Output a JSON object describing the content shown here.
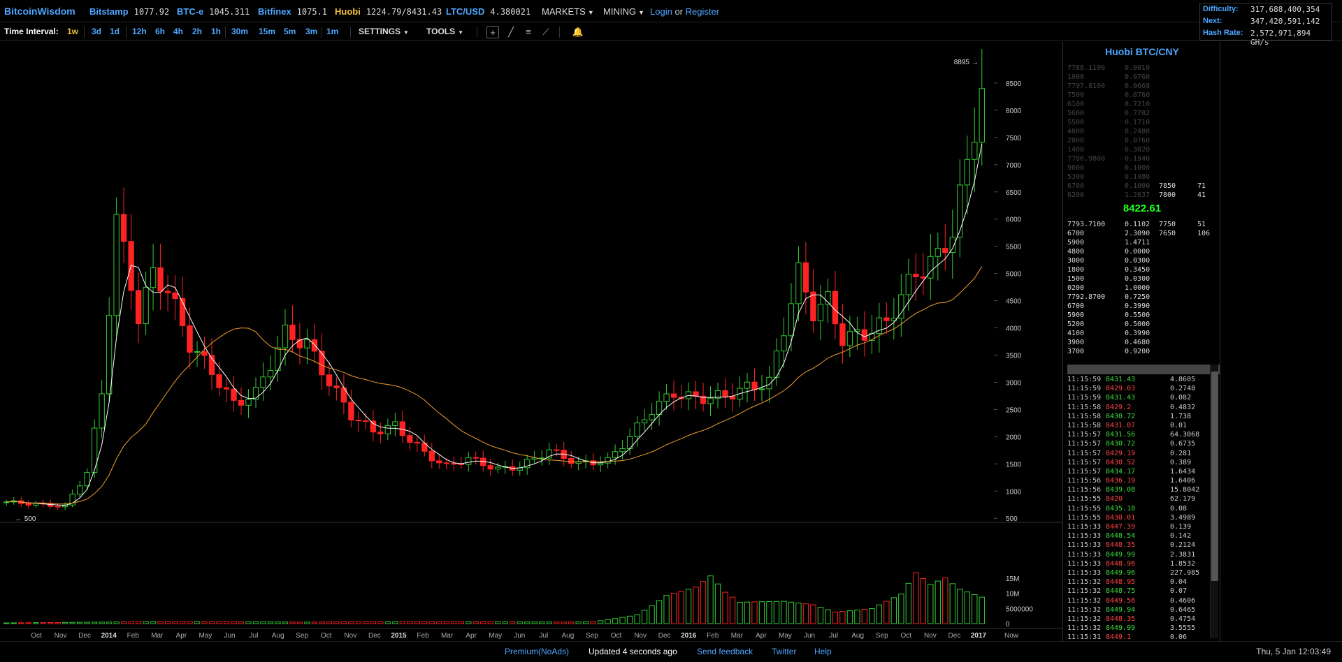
{
  "app": {
    "brand": "BitcoinWisdom"
  },
  "tickers": [
    {
      "name": "Bitstamp",
      "value": "1077.92",
      "style": "blue"
    },
    {
      "name": "BTC-e",
      "value": "1045.311",
      "style": "blue"
    },
    {
      "name": "Bitfinex",
      "value": "1075.1",
      "style": "blue"
    },
    {
      "name": "Huobi",
      "value": "1224.79/8431.43",
      "style": "yellow"
    },
    {
      "name": "LTC/USD",
      "value": "4.380021",
      "style": "blue"
    }
  ],
  "menus": {
    "markets": "MARKETS",
    "mining": "MINING",
    "login": "Login",
    "or": "or",
    "register": "Register"
  },
  "network": {
    "difficulty_label": "Difficulty:",
    "difficulty": "317,688,400,354",
    "next_label": "Next:",
    "next": "347,420,591,142",
    "hashrate_label": "Hash Rate:",
    "hashrate": "2,572,971,894 GH/s"
  },
  "toolbar": {
    "label": "Time Interval:",
    "intervals": [
      "1w",
      "3d",
      "1d",
      "12h",
      "6h",
      "4h",
      "2h",
      "1h",
      "30m",
      "15m",
      "5m",
      "3m",
      "1m"
    ],
    "active": "1w",
    "settings": "SETTINGS",
    "tools": "TOOLS"
  },
  "chart_data": {
    "type": "candlestick",
    "ylim": [
      400,
      9000
    ],
    "price_ticks": [
      500,
      1000,
      1500,
      2000,
      2500,
      3000,
      3500,
      4000,
      4500,
      5000,
      5500,
      6000,
      6500,
      7000,
      7500,
      8000,
      8500
    ],
    "volume_ticks": [
      "0",
      "5000000",
      "10M",
      "15M"
    ],
    "volume_tick_values": [
      0,
      5000000,
      10000000,
      15000000
    ],
    "x_labels": [
      "Oct",
      "Nov",
      "Dec",
      "2014",
      "Feb",
      "Mar",
      "Apr",
      "May",
      "Jun",
      "Jul",
      "Aug",
      "Sep",
      "Oct",
      "Nov",
      "Dec",
      "2015",
      "Feb",
      "Mar",
      "Apr",
      "May",
      "Jun",
      "Jul",
      "Aug",
      "Sep",
      "Oct",
      "Nov",
      "Dec",
      "2016",
      "Feb",
      "Mar",
      "Apr",
      "May",
      "Jun",
      "Jul",
      "Aug",
      "Sep",
      "Oct",
      "Nov",
      "Dec",
      "2017",
      "Now"
    ],
    "bold_labels": [
      "2014",
      "2015",
      "2016",
      "2017"
    ],
    "high_marker": "8895",
    "high_value": 8895,
    "low_marker": "500",
    "low_value": 500,
    "close_anchors": [
      [
        0,
        800
      ],
      [
        8,
        720
      ],
      [
        11,
        1350
      ],
      [
        13,
        2800
      ],
      [
        15,
        6000
      ],
      [
        18,
        4200
      ],
      [
        20,
        5000
      ],
      [
        22,
        4700
      ],
      [
        25,
        3700
      ],
      [
        28,
        3200
      ],
      [
        31,
        2600
      ],
      [
        34,
        2800
      ],
      [
        38,
        3900
      ],
      [
        41,
        3700
      ],
      [
        44,
        3000
      ],
      [
        47,
        2400
      ],
      [
        50,
        2100
      ],
      [
        53,
        2200
      ],
      [
        57,
        1700
      ],
      [
        60,
        1450
      ],
      [
        63,
        1600
      ],
      [
        67,
        1400
      ],
      [
        70,
        1450
      ],
      [
        74,
        1750
      ],
      [
        78,
        1500
      ],
      [
        82,
        1560
      ],
      [
        85,
        2000
      ],
      [
        88,
        2500
      ],
      [
        91,
        2800
      ],
      [
        94,
        2700
      ],
      [
        98,
        2750
      ],
      [
        101,
        2900
      ],
      [
        104,
        3000
      ],
      [
        106,
        4000
      ],
      [
        108,
        5000
      ],
      [
        110,
        4300
      ],
      [
        112,
        4500
      ],
      [
        114,
        3800
      ],
      [
        117,
        3900
      ],
      [
        120,
        4100
      ],
      [
        122,
        4600
      ],
      [
        124,
        5000
      ],
      [
        127,
        5300
      ],
      [
        129,
        5800
      ],
      [
        131,
        7000
      ],
      [
        133,
        8431
      ]
    ],
    "volume_anchors": [
      [
        0,
        0.3
      ],
      [
        20,
        0.6
      ],
      [
        40,
        0.4
      ],
      [
        60,
        0.6
      ],
      [
        80,
        0.7
      ],
      [
        86,
        3
      ],
      [
        90,
        9
      ],
      [
        94,
        11
      ],
      [
        96,
        14
      ],
      [
        98,
        9
      ],
      [
        100,
        6
      ],
      [
        103,
        6
      ],
      [
        106,
        6
      ],
      [
        110,
        5
      ],
      [
        113,
        3
      ],
      [
        118,
        4
      ],
      [
        122,
        8
      ],
      [
        124,
        14
      ],
      [
        126,
        11
      ],
      [
        128,
        13
      ],
      [
        130,
        10
      ],
      [
        133,
        8
      ]
    ],
    "candle_count": 134
  },
  "orderbook": {
    "title": "Huobi BTC/CNY",
    "last_price": "8422.61",
    "asks": [
      [
        "7788.1100",
        "0.0010",
        "",
        ""
      ],
      [
        "1000",
        "0.0760",
        "",
        ""
      ],
      [
        "7797.8100",
        "0.0668",
        "",
        ""
      ],
      [
        "7500",
        "0.0760",
        "",
        ""
      ],
      [
        "6100",
        "0.7210",
        "",
        ""
      ],
      [
        "5600",
        "0.7702",
        "",
        ""
      ],
      [
        "5500",
        "0.1710",
        "",
        ""
      ],
      [
        "4800",
        "0.2480",
        "",
        ""
      ],
      [
        "2800",
        "0.0760",
        "",
        ""
      ],
      [
        "1400",
        "0.3820",
        "",
        ""
      ],
      [
        "7786.9800",
        "0.1940",
        "",
        ""
      ],
      [
        "9600",
        "0.1000",
        "",
        ""
      ],
      [
        "5300",
        "0.1480",
        "",
        ""
      ],
      [
        "6700",
        "0.1000",
        "7850",
        "71"
      ],
      [
        "6200",
        "1.2637",
        "7800",
        "41"
      ]
    ],
    "bids": [
      [
        "7793.7100",
        "0.1102",
        "7750",
        "51"
      ],
      [
        "6700",
        "2.3090",
        "7650",
        "106"
      ],
      [
        "5900",
        "1.4711",
        "",
        ""
      ],
      [
        "4800",
        "0.0000",
        "",
        ""
      ],
      [
        "3000",
        "0.0300",
        "",
        ""
      ],
      [
        "1800",
        "0.3450",
        "",
        ""
      ],
      [
        "1500",
        "0.0300",
        "",
        ""
      ],
      [
        "0200",
        "1.0000",
        "",
        ""
      ],
      [
        "7792.8700",
        "0.7250",
        "",
        ""
      ],
      [
        "6700",
        "0.3990",
        "",
        ""
      ],
      [
        "5900",
        "0.5500",
        "",
        ""
      ],
      [
        "5200",
        "0.5000",
        "",
        ""
      ],
      [
        "4100",
        "0.3990",
        "",
        ""
      ],
      [
        "3900",
        "0.4680",
        "",
        ""
      ],
      [
        "3700",
        "0.9200",
        "",
        ""
      ]
    ]
  },
  "trades": [
    [
      "11:15:59",
      "8431.43",
      "g",
      "4.8605"
    ],
    [
      "11:15:59",
      "8429.03",
      "r",
      "0.2748"
    ],
    [
      "11:15:59",
      "8431.43",
      "g",
      "0.082"
    ],
    [
      "11:15:58",
      "8429.2",
      "r",
      "0.4832"
    ],
    [
      "11:15:58",
      "8430.72",
      "g",
      "1.738"
    ],
    [
      "11:15:58",
      "8431.07",
      "r",
      "0.01"
    ],
    [
      "11:15:57",
      "8431.56",
      "g",
      "64.3068"
    ],
    [
      "11:15:57",
      "8430.72",
      "g",
      "0.6735"
    ],
    [
      "11:15:57",
      "8429.19",
      "r",
      "0.281"
    ],
    [
      "11:15:57",
      "8430.52",
      "r",
      "0.389"
    ],
    [
      "11:15:57",
      "8434.17",
      "g",
      "1.6434"
    ],
    [
      "11:15:56",
      "8436.19",
      "r",
      "1.6406"
    ],
    [
      "11:15:56",
      "8439.08",
      "g",
      "15.8042"
    ],
    [
      "11:15:55",
      "8420",
      "r",
      "62.179"
    ],
    [
      "11:15:55",
      "8435.18",
      "g",
      "0.08"
    ],
    [
      "11:15:55",
      "8430.01",
      "r",
      "3.4989"
    ],
    [
      "11:15:33",
      "8447.39",
      "r",
      "0.139"
    ],
    [
      "11:15:33",
      "8448.54",
      "g",
      "0.142"
    ],
    [
      "11:15:33",
      "8448.35",
      "r",
      "0.2124"
    ],
    [
      "11:15:33",
      "8449.99",
      "g",
      "2.3831"
    ],
    [
      "11:15:33",
      "8448.96",
      "r",
      "1.8532"
    ],
    [
      "11:15:33",
      "8449.96",
      "g",
      "227.985"
    ],
    [
      "11:15:32",
      "8448.95",
      "r",
      "0.04"
    ],
    [
      "11:15:32",
      "8448.75",
      "g",
      "0.07"
    ],
    [
      "11:15:32",
      "8449.56",
      "r",
      "0.4606"
    ],
    [
      "11:15:32",
      "8449.94",
      "g",
      "0.6465"
    ],
    [
      "11:15:32",
      "8448.35",
      "r",
      "0.4754"
    ],
    [
      "11:15:32",
      "8449.99",
      "g",
      "3.5555"
    ],
    [
      "11:15:31",
      "8449.1",
      "r",
      "0.06"
    ]
  ],
  "footer": {
    "premium": "Premium(NoAds)",
    "updated": "Updated 4 seconds ago",
    "feedback": "Send feedback",
    "twitter": "Twitter",
    "help": "Help",
    "timestamp": "Thu, 5 Jan 12:03:49"
  },
  "colors": {
    "up": "#33cc33",
    "down": "#ff2222",
    "ma_fast": "#ffffff",
    "ma_slow": "#f0a030",
    "accent": "#4da6ff"
  }
}
